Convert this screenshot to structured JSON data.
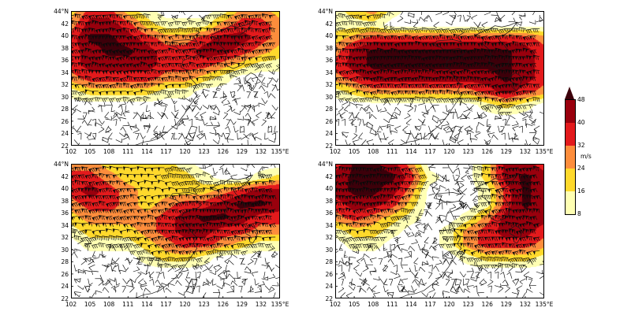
{
  "figure": {
    "background": "#ffffff",
    "kind": "2x2 wind-speed filled-contour maps with wind barbs"
  },
  "axes": {
    "lat_tick_labels": [
      "44°N",
      "42",
      "40",
      "38",
      "36",
      "34",
      "32",
      "30",
      "28",
      "26",
      "24",
      "22"
    ],
    "lat_tick_values": [
      44,
      42,
      40,
      38,
      36,
      34,
      32,
      30,
      28,
      26,
      24,
      22
    ],
    "lon_tick_labels": [
      "102",
      "105",
      "108",
      "111",
      "114",
      "117",
      "120",
      "123",
      "126",
      "129",
      "132",
      "135°E"
    ],
    "lon_tick_values": [
      102,
      105,
      108,
      111,
      114,
      117,
      120,
      123,
      126,
      129,
      132,
      135
    ],
    "lon_range": [
      102,
      135
    ],
    "lat_range": [
      22,
      44
    ]
  },
  "colorbar": {
    "unit": "m/s",
    "tick_labels": [
      "48",
      "40",
      "32",
      "24",
      "16",
      "8"
    ],
    "levels": [
      8,
      16,
      24,
      32,
      40,
      48
    ],
    "band_colors": [
      "#ffffff",
      "#ffffb3",
      "#ffd92c",
      "#fd8d3c",
      "#e31a1c",
      "#99000d",
      "#3d000a"
    ],
    "band_meaning": [
      "<8",
      "8-16",
      "16-24",
      "24-32",
      "32-40",
      "40-48",
      ">48"
    ]
  },
  "chart_data": [
    {
      "type": "heatmap",
      "panel": "top-left",
      "x_range": [
        102,
        135
      ],
      "y_range": [
        22,
        44
      ],
      "grid_lon_centers": [
        103.4,
        106.1,
        108.9,
        111.6,
        114.4,
        117.1,
        119.9,
        122.6,
        125.4,
        128.1,
        130.9,
        133.6
      ],
      "grid_lat_centers": [
        43,
        41,
        39,
        37,
        35,
        33,
        31,
        29,
        27,
        25,
        23
      ],
      "wind_speed_ms": [
        [
          20,
          36,
          36,
          20,
          12,
          4,
          4,
          4,
          12,
          28,
          28,
          20
        ],
        [
          28,
          44,
          44,
          36,
          20,
          12,
          12,
          12,
          28,
          36,
          36,
          28
        ],
        [
          36,
          50,
          50,
          44,
          36,
          28,
          28,
          36,
          44,
          44,
          36,
          28
        ],
        [
          36,
          44,
          50,
          50,
          44,
          36,
          36,
          44,
          44,
          36,
          28,
          20
        ],
        [
          36,
          44,
          44,
          44,
          44,
          36,
          36,
          36,
          28,
          20,
          12,
          12
        ],
        [
          28,
          36,
          36,
          36,
          36,
          28,
          28,
          20,
          12,
          4,
          4,
          4
        ],
        [
          12,
          20,
          20,
          20,
          20,
          12,
          12,
          4,
          4,
          4,
          4,
          4
        ],
        [
          4,
          4,
          4,
          4,
          4,
          4,
          4,
          4,
          4,
          4,
          4,
          4
        ],
        [
          4,
          4,
          4,
          4,
          4,
          4,
          4,
          4,
          4,
          4,
          4,
          4
        ],
        [
          4,
          4,
          4,
          4,
          4,
          4,
          4,
          4,
          4,
          4,
          4,
          4
        ],
        [
          4,
          4,
          4,
          4,
          4,
          4,
          4,
          4,
          4,
          4,
          4,
          4
        ]
      ]
    },
    {
      "type": "heatmap",
      "panel": "top-right",
      "x_range": [
        102,
        135
      ],
      "y_range": [
        22,
        44
      ],
      "grid_lon_centers": [
        103.4,
        106.1,
        108.9,
        111.6,
        114.4,
        117.1,
        119.9,
        122.6,
        125.4,
        128.1,
        130.9,
        133.6
      ],
      "grid_lat_centers": [
        43,
        41,
        39,
        37,
        35,
        33,
        31,
        29,
        27,
        25,
        23
      ],
      "wind_speed_ms": [
        [
          12,
          20,
          28,
          12,
          4,
          4,
          4,
          4,
          4,
          4,
          4,
          4
        ],
        [
          12,
          12,
          12,
          4,
          4,
          4,
          4,
          4,
          4,
          4,
          4,
          4
        ],
        [
          20,
          28,
          36,
          36,
          36,
          36,
          36,
          36,
          36,
          36,
          36,
          28
        ],
        [
          28,
          44,
          50,
          50,
          50,
          50,
          50,
          50,
          50,
          50,
          44,
          36
        ],
        [
          36,
          44,
          50,
          50,
          50,
          50,
          50,
          50,
          50,
          50,
          44,
          36
        ],
        [
          28,
          36,
          44,
          44,
          44,
          44,
          44,
          44,
          44,
          50,
          44,
          36
        ],
        [
          12,
          20,
          28,
          28,
          28,
          28,
          28,
          28,
          36,
          44,
          36,
          28
        ],
        [
          4,
          4,
          4,
          4,
          4,
          4,
          4,
          4,
          12,
          20,
          12,
          4
        ],
        [
          4,
          4,
          4,
          4,
          4,
          4,
          4,
          4,
          4,
          4,
          4,
          4
        ],
        [
          4,
          4,
          4,
          4,
          4,
          4,
          4,
          4,
          4,
          4,
          4,
          4
        ],
        [
          4,
          4,
          4,
          4,
          4,
          4,
          4,
          4,
          4,
          4,
          4,
          4
        ]
      ]
    },
    {
      "type": "heatmap",
      "panel": "bottom-left",
      "x_range": [
        102,
        135
      ],
      "y_range": [
        22,
        44
      ],
      "grid_lon_centers": [
        103.4,
        106.1,
        108.9,
        111.6,
        114.4,
        117.1,
        119.9,
        122.6,
        125.4,
        128.1,
        130.9,
        133.6
      ],
      "grid_lat_centers": [
        43,
        41,
        39,
        37,
        35,
        33,
        31,
        29,
        27,
        25,
        23
      ],
      "wind_speed_ms": [
        [
          28,
          28,
          20,
          20,
          20,
          20,
          12,
          4,
          4,
          4,
          4,
          4
        ],
        [
          36,
          36,
          28,
          20,
          20,
          20,
          20,
          12,
          4,
          4,
          12,
          20
        ],
        [
          36,
          44,
          36,
          28,
          20,
          20,
          20,
          20,
          28,
          36,
          44,
          44
        ],
        [
          28,
          36,
          36,
          28,
          20,
          28,
          36,
          36,
          44,
          50,
          50,
          44
        ],
        [
          20,
          28,
          28,
          28,
          28,
          36,
          44,
          50,
          50,
          44,
          36,
          36
        ],
        [
          12,
          20,
          20,
          20,
          28,
          36,
          44,
          44,
          36,
          36,
          28,
          28
        ],
        [
          4,
          12,
          12,
          12,
          20,
          28,
          36,
          36,
          28,
          20,
          12,
          12
        ],
        [
          4,
          4,
          4,
          4,
          12,
          20,
          20,
          12,
          4,
          4,
          4,
          4
        ],
        [
          4,
          4,
          4,
          4,
          4,
          4,
          4,
          4,
          4,
          4,
          4,
          4
        ],
        [
          4,
          4,
          4,
          4,
          4,
          4,
          4,
          4,
          4,
          4,
          4,
          4
        ],
        [
          4,
          4,
          4,
          4,
          4,
          4,
          4,
          4,
          4,
          4,
          4,
          4
        ]
      ]
    },
    {
      "type": "heatmap",
      "panel": "bottom-right",
      "x_range": [
        102,
        135
      ],
      "y_range": [
        22,
        44
      ],
      "grid_lon_centers": [
        103.4,
        106.1,
        108.9,
        111.6,
        114.4,
        117.1,
        119.9,
        122.6,
        125.4,
        128.1,
        130.9,
        133.6
      ],
      "grid_lat_centers": [
        43,
        41,
        39,
        37,
        35,
        33,
        31,
        29,
        27,
        25,
        23
      ],
      "wind_speed_ms": [
        [
          36,
          50,
          50,
          44,
          28,
          4,
          4,
          4,
          20,
          44,
          44,
          36
        ],
        [
          44,
          50,
          50,
          50,
          36,
          12,
          4,
          4,
          20,
          44,
          50,
          44
        ],
        [
          44,
          50,
          50,
          44,
          28,
          4,
          4,
          4,
          12,
          36,
          50,
          44
        ],
        [
          36,
          44,
          44,
          36,
          20,
          4,
          4,
          4,
          12,
          36,
          50,
          44
        ],
        [
          28,
          36,
          28,
          20,
          12,
          4,
          4,
          12,
          28,
          44,
          44,
          44
        ],
        [
          12,
          20,
          20,
          12,
          4,
          4,
          12,
          28,
          36,
          44,
          44,
          36
        ],
        [
          4,
          12,
          12,
          4,
          4,
          4,
          12,
          28,
          36,
          36,
          36,
          28
        ],
        [
          4,
          4,
          4,
          4,
          4,
          4,
          4,
          12,
          20,
          20,
          20,
          12
        ],
        [
          4,
          4,
          4,
          4,
          4,
          4,
          4,
          4,
          4,
          4,
          4,
          4
        ],
        [
          4,
          4,
          4,
          4,
          4,
          4,
          4,
          4,
          4,
          4,
          4,
          4
        ],
        [
          4,
          4,
          4,
          4,
          4,
          4,
          4,
          4,
          4,
          4,
          4,
          4
        ]
      ]
    }
  ],
  "overlay": {
    "barbs": "black wind barbs on regular grid, predominantly westerly inside high-speed band",
    "coastline": "east Asia coastline"
  }
}
